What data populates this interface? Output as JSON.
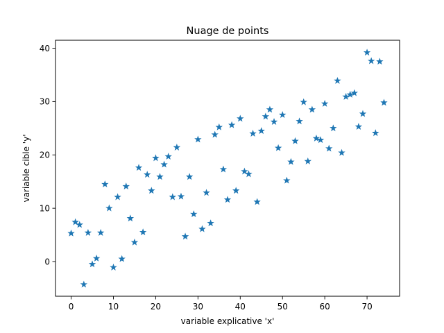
{
  "chart_data": {
    "type": "scatter",
    "title": "Nuage de points",
    "xlabel": "variable explicative 'x'",
    "ylabel": "variable cible 'y'",
    "xlim": [
      -3.7,
      77.7
    ],
    "ylim": [
      -6.5,
      41.5
    ],
    "xticks": [
      0,
      10,
      20,
      30,
      40,
      50,
      60,
      70
    ],
    "yticks": [
      0,
      10,
      20,
      30,
      40
    ],
    "marker": "star",
    "grid": false,
    "legend": "none",
    "colors": {
      "marker": "#1f77b4",
      "axes": "#000000"
    },
    "series": [
      {
        "x": [
          0,
          1,
          2,
          3,
          4,
          5,
          6,
          7,
          8,
          9,
          10,
          11,
          12,
          13,
          14,
          15,
          16,
          17,
          18,
          19,
          20,
          21,
          22,
          23,
          24,
          25,
          26,
          27,
          28,
          29,
          30,
          31,
          32,
          33,
          34,
          35,
          36,
          37,
          38,
          39,
          40,
          41,
          42,
          43,
          44,
          45,
          46,
          47,
          48,
          49,
          50,
          51,
          52,
          53,
          54,
          55,
          56,
          57,
          58,
          59,
          60,
          61,
          62,
          63,
          64,
          65,
          66,
          67,
          68,
          69,
          70,
          71,
          72,
          73,
          74
        ],
        "y": [
          5.3,
          7.4,
          6.9,
          -4.3,
          5.4,
          -0.5,
          0.6,
          5.4,
          14.5,
          10.0,
          -1.1,
          12.1,
          0.5,
          14.1,
          8.1,
          3.6,
          17.6,
          5.5,
          16.3,
          13.3,
          19.4,
          15.9,
          18.2,
          19.7,
          12.1,
          21.4,
          12.2,
          4.7,
          15.9,
          8.9,
          22.9,
          6.1,
          12.9,
          7.2,
          23.8,
          25.2,
          17.3,
          11.6,
          25.6,
          13.3,
          26.8,
          16.9,
          16.4,
          24.0,
          11.2,
          24.5,
          27.2,
          28.5,
          26.2,
          21.3,
          27.5,
          15.2,
          18.7,
          22.6,
          26.3,
          29.9,
          18.8,
          28.5,
          23.1,
          22.8,
          29.6,
          21.2,
          25.0,
          33.9,
          20.4,
          30.9,
          31.3,
          31.6,
          25.3,
          27.7,
          39.2,
          37.6,
          24.1,
          37.5,
          29.8
        ]
      }
    ]
  }
}
